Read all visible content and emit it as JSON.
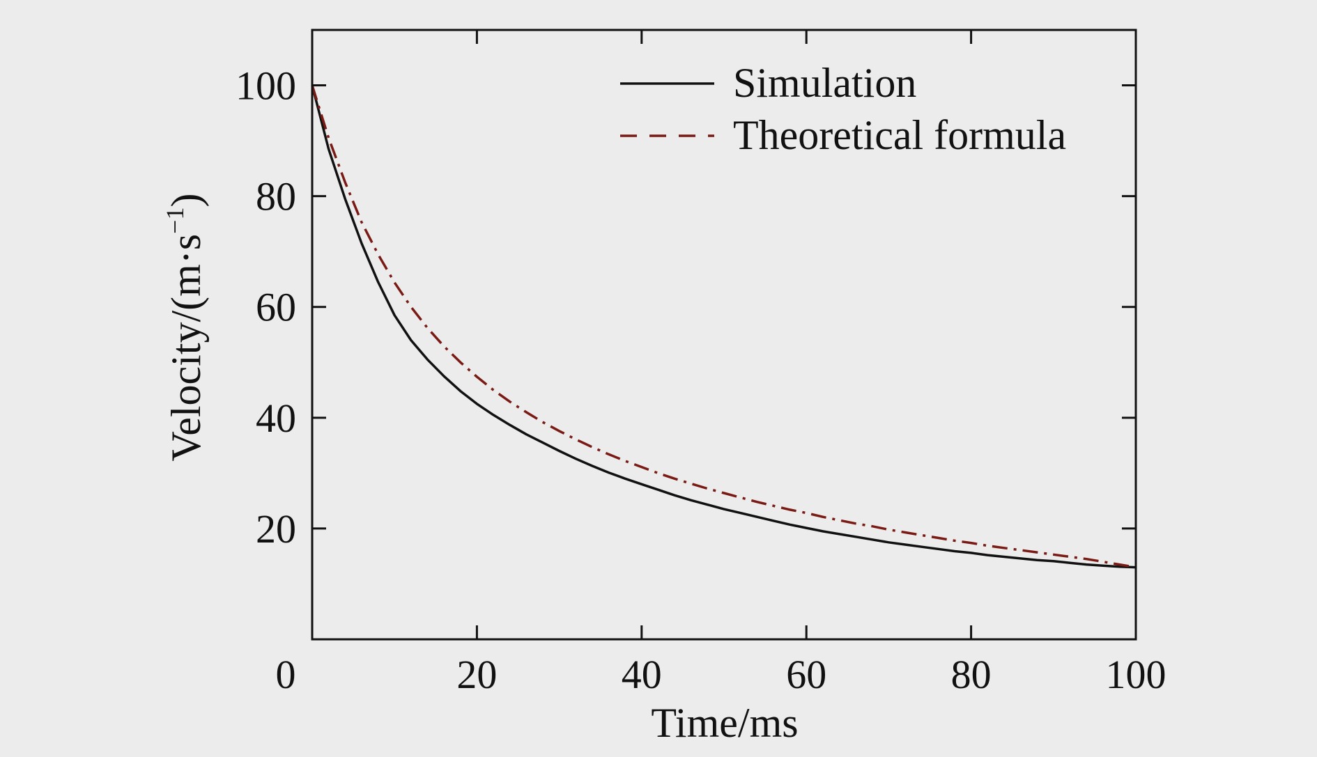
{
  "chart_data": {
    "type": "line",
    "xlabel": "Time/ms",
    "ylabel_main": "Velocity/(m·s",
    "ylabel_sup": "−1",
    "ylabel_close": ")",
    "xlim": [
      0,
      100
    ],
    "ylim": [
      0,
      110
    ],
    "xticks": [
      20,
      40,
      60,
      80,
      100
    ],
    "yticks": [
      20,
      40,
      60,
      80,
      100
    ],
    "origin_label": "0",
    "grid": false,
    "legend_position": "top-right",
    "series": [
      {
        "name": "Simulation",
        "color": "#111111",
        "style": "solid",
        "x": [
          0,
          2,
          4,
          6,
          8,
          10,
          12,
          14,
          16,
          18,
          20,
          22,
          24,
          26,
          28,
          30,
          32,
          34,
          36,
          38,
          40,
          42,
          44,
          46,
          48,
          50,
          52,
          54,
          56,
          58,
          60,
          62,
          64,
          66,
          68,
          70,
          72,
          74,
          76,
          78,
          80,
          82,
          84,
          86,
          88,
          90,
          92,
          94,
          96,
          98,
          100
        ],
        "values": [
          100,
          88.5,
          79.5,
          71.5,
          64.5,
          58.5,
          54,
          50.5,
          47.5,
          44.8,
          42.5,
          40.5,
          38.7,
          37,
          35.5,
          34,
          32.6,
          31.3,
          30.1,
          29,
          28,
          27,
          26,
          25.1,
          24.3,
          23.5,
          22.8,
          22.1,
          21.4,
          20.7,
          20.1,
          19.5,
          19,
          18.5,
          18,
          17.5,
          17.1,
          16.7,
          16.3,
          15.9,
          15.6,
          15.2,
          14.9,
          14.6,
          14.3,
          14.1,
          13.8,
          13.5,
          13.3,
          13.1,
          13
        ]
      },
      {
        "name": "Theoretical formula",
        "color": "#7a1a14",
        "style": "dashdot",
        "x": [
          0,
          2,
          4,
          6,
          8,
          10,
          12,
          14,
          16,
          18,
          20,
          22,
          24,
          26,
          28,
          30,
          32,
          34,
          36,
          38,
          40,
          42,
          44,
          46,
          48,
          50,
          52,
          54,
          56,
          58,
          60,
          62,
          64,
          66,
          68,
          70,
          72,
          74,
          76,
          78,
          80,
          82,
          84,
          86,
          88,
          90,
          92,
          94,
          96,
          98,
          100
        ],
        "values": [
          100,
          90.5,
          82.5,
          75.3,
          69.5,
          64.4,
          60,
          56.2,
          52.9,
          50,
          47.4,
          45,
          42.9,
          41,
          39.2,
          37.6,
          36.1,
          34.7,
          33.4,
          32.2,
          31.1,
          30,
          29,
          28.1,
          27.2,
          26.4,
          25.6,
          24.8,
          24.1,
          23.4,
          22.8,
          22.1,
          21.5,
          20.9,
          20.4,
          19.8,
          19.3,
          18.8,
          18.3,
          17.8,
          17.4,
          16.9,
          16.5,
          16.1,
          15.7,
          15.3,
          14.9,
          14.5,
          14.0,
          13.5,
          13
        ]
      }
    ]
  }
}
